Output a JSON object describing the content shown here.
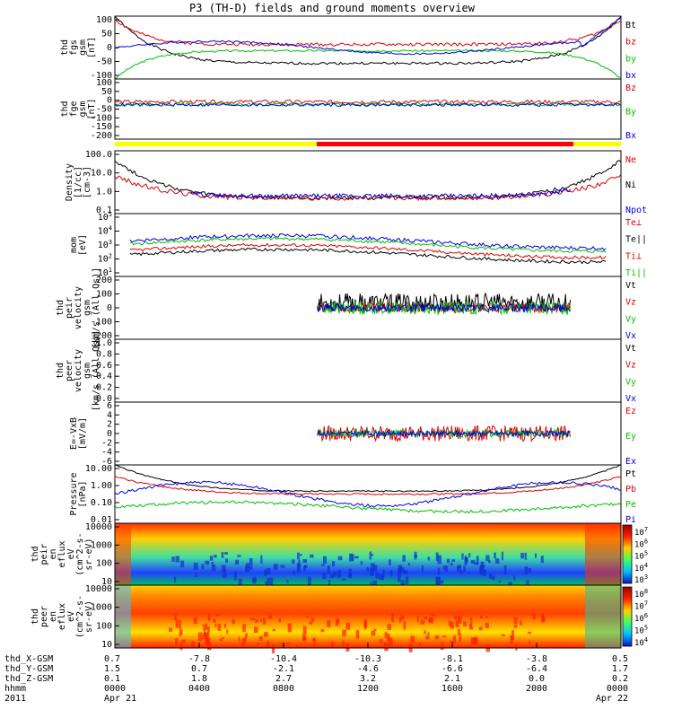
{
  "title": "P3 (TH-D) fields and ground moments overview",
  "chart_data": [
    {
      "type": "line",
      "panel": "thd_fgs_gsm",
      "ylabel": [
        "thd",
        "fgs",
        "gsm",
        "[nT]"
      ],
      "yticks": [
        "100",
        "50",
        "0",
        "-50",
        "-100"
      ],
      "ylim": [
        -100,
        100
      ],
      "legend": [
        {
          "label": "Bt",
          "color": "#000000"
        },
        {
          "label": "bz",
          "color": "#e00000"
        },
        {
          "label": "by",
          "color": "#00c000"
        },
        {
          "label": "bx",
          "color": "#0000e0"
        }
      ]
    },
    {
      "type": "line",
      "panel": "thd_fge_gsm",
      "ylabel": [
        "thd",
        "fge",
        "gsm",
        "[nT]"
      ],
      "yticks": [
        "100",
        "50",
        "0",
        "-50",
        "-100",
        "-150",
        "-200"
      ],
      "ylim": [
        -220,
        100
      ],
      "legend": [
        {
          "label": "Bz",
          "color": "#e00000"
        },
        {
          "label": "By",
          "color": "#00c000"
        },
        {
          "label": "Bx",
          "color": "#0000e0"
        }
      ]
    },
    {
      "type": "line",
      "panel": "density",
      "ylabel": [
        "Density",
        "[1/cc]",
        "[cm-3]"
      ],
      "yticks": [
        "100.0",
        "10.0",
        "1.0",
        "0.1"
      ],
      "ylim": [
        0.1,
        100
      ],
      "yscale": "log",
      "legend": [
        {
          "label": "Ne",
          "color": "#e00000"
        },
        {
          "label": "Ni",
          "color": "#000000"
        },
        {
          "label": "Npot",
          "color": "#0000e0"
        }
      ]
    },
    {
      "type": "line",
      "panel": "temperature",
      "ylabel": [
        "mom",
        "[eV]"
      ],
      "yticks": [
        "10^5",
        "10^4",
        "10^3",
        "10^2",
        "10^1"
      ],
      "ylim": [
        10,
        100000
      ],
      "yscale": "log",
      "legend": [
        {
          "label": "Te⊥",
          "color": "#e00000"
        },
        {
          "label": "Te||",
          "color": "#000000"
        },
        {
          "label": "Ti⊥",
          "color": "#e00000"
        },
        {
          "label": "Ti||",
          "color": "#00c000"
        }
      ]
    },
    {
      "type": "line",
      "panel": "thd_peir_velocity_gsm",
      "ylabel": [
        "thd",
        "peir",
        "velocity",
        "gsm",
        "[km/s (All Qs)]"
      ],
      "yticks": [
        "200",
        "100",
        "0",
        "-100",
        "-200"
      ],
      "ylim": [
        -200,
        200
      ],
      "legend": [
        {
          "label": "Vt",
          "color": "#000000"
        },
        {
          "label": "Vz",
          "color": "#e00000"
        },
        {
          "label": "Vy",
          "color": "#00c000"
        },
        {
          "label": "Vx",
          "color": "#0000e0"
        }
      ]
    },
    {
      "type": "line",
      "panel": "thd_peer_velocity_gsm",
      "ylabel": [
        "thd",
        "peer",
        "velocity",
        "gsm",
        "[km/s (All Qs)]"
      ],
      "yticks": [
        "1.0",
        "0.8",
        "0.6",
        "0.4",
        "0.2",
        "0.0"
      ],
      "ylim": [
        0,
        1
      ],
      "legend": [
        {
          "label": "Vt",
          "color": "#000000"
        },
        {
          "label": "Vz",
          "color": "#e00000"
        },
        {
          "label": "Vy",
          "color": "#00c000"
        },
        {
          "label": "Vx",
          "color": "#0000e0"
        }
      ]
    },
    {
      "type": "line",
      "panel": "E_minus_VxB",
      "ylabel": [
        "E=-VxB",
        "[mV/m]"
      ],
      "yticks": [
        "6",
        "4",
        "2",
        "0",
        "-2",
        "-4",
        "-6"
      ],
      "ylim": [
        -6,
        6
      ],
      "legend": [
        {
          "label": "Ez",
          "color": "#e00000"
        },
        {
          "label": "Ey",
          "color": "#00c000"
        },
        {
          "label": "Ex",
          "color": "#0000e0"
        }
      ]
    },
    {
      "type": "line",
      "panel": "pressure",
      "ylabel": [
        "Pressure",
        "[nPa]"
      ],
      "yticks": [
        "10.00",
        "1.00",
        "0.10",
        "0.01"
      ],
      "ylim": [
        0.01,
        10
      ],
      "yscale": "log",
      "legend": [
        {
          "label": "Pt",
          "color": "#000000"
        },
        {
          "label": "Pb",
          "color": "#e00000"
        },
        {
          "label": "Pe",
          "color": "#00c000"
        },
        {
          "label": "Pi",
          "color": "#0000e0"
        }
      ]
    },
    {
      "type": "heatmap",
      "panel": "thd_peir_en_eflux",
      "ylabel": [
        "thd",
        "peir",
        "en",
        "eflux",
        "eV",
        "(cm^2-s-",
        "sr-eV)"
      ],
      "yticks": [
        "10000",
        "1000",
        "100",
        "10"
      ],
      "colorbar_ticks": [
        "10^7",
        "10^6",
        "10^5",
        "10^4",
        "10^3"
      ]
    },
    {
      "type": "heatmap",
      "panel": "thd_peer_en_eflux",
      "ylabel": [
        "thd",
        "peer",
        "en",
        "eflux",
        "eV",
        "(cm^2-s-",
        "sr-eV)"
      ],
      "yticks": [
        "10000",
        "1000",
        "100",
        "10"
      ],
      "colorbar_ticks": [
        "10^8",
        "10^7",
        "10^6",
        "10^5",
        "10^4"
      ]
    }
  ],
  "x_axis": {
    "row_labels": [
      "thd_X-GSM",
      "thd_Y-GSM",
      "thd_Z-GSM",
      "hhmm",
      "2011"
    ],
    "ticks": [
      {
        "rows": [
          "0.7",
          "1.5",
          "0.1",
          "0000",
          "Apr 21"
        ]
      },
      {
        "rows": [
          "-7.8",
          "0.7",
          "1.8",
          "0400",
          ""
        ]
      },
      {
        "rows": [
          "-10.4",
          "-2.1",
          "2.7",
          "0800",
          ""
        ]
      },
      {
        "rows": [
          "-10.3",
          "-4.6",
          "3.2",
          "1200",
          ""
        ]
      },
      {
        "rows": [
          "-8.1",
          "-6.6",
          "2.1",
          "1600",
          ""
        ]
      },
      {
        "rows": [
          "-3.8",
          "-6.4",
          "0.0",
          "2000",
          ""
        ]
      },
      {
        "rows": [
          "0.5",
          "1.7",
          "0.2",
          "0000",
          "Apr 22"
        ]
      }
    ]
  }
}
